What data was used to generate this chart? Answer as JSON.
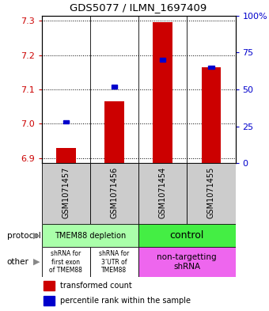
{
  "title": "GDS5077 / ILMN_1697409",
  "samples": [
    "GSM1071457",
    "GSM1071456",
    "GSM1071454",
    "GSM1071455"
  ],
  "red_values": [
    6.93,
    7.065,
    7.295,
    7.165
  ],
  "red_baseline": 6.885,
  "blue_pct": [
    28,
    52,
    70,
    65
  ],
  "ylim_left": [
    6.885,
    7.315
  ],
  "ylim_right": [
    0,
    100
  ],
  "left_ticks": [
    6.9,
    7.0,
    7.1,
    7.2,
    7.3
  ],
  "right_ticks": [
    0,
    25,
    50,
    75,
    100
  ],
  "right_tick_labels": [
    "0",
    "25",
    "50",
    "75",
    "100%"
  ],
  "sample_bg_color": "#cccccc",
  "red_color": "#cc0000",
  "blue_color": "#0000cc",
  "proto_color_left": "#aaffaa",
  "proto_color_right": "#44ee44",
  "other_color_white": "#ffffff",
  "other_color_pink": "#ee66ee",
  "bar_width": 0.4
}
